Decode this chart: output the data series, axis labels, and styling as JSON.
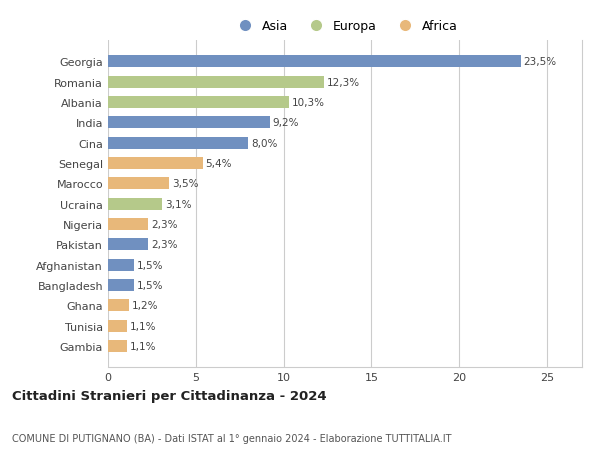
{
  "countries": [
    "Georgia",
    "Romania",
    "Albania",
    "India",
    "Cina",
    "Senegal",
    "Marocco",
    "Ucraina",
    "Nigeria",
    "Pakistan",
    "Afghanistan",
    "Bangladesh",
    "Ghana",
    "Tunisia",
    "Gambia"
  ],
  "values": [
    23.5,
    12.3,
    10.3,
    9.2,
    8.0,
    5.4,
    3.5,
    3.1,
    2.3,
    2.3,
    1.5,
    1.5,
    1.2,
    1.1,
    1.1
  ],
  "labels": [
    "23,5%",
    "12,3%",
    "10,3%",
    "9,2%",
    "8,0%",
    "5,4%",
    "3,5%",
    "3,1%",
    "2,3%",
    "2,3%",
    "1,5%",
    "1,5%",
    "1,2%",
    "1,1%",
    "1,1%"
  ],
  "continent": [
    "Asia",
    "Europa",
    "Europa",
    "Asia",
    "Asia",
    "Africa",
    "Africa",
    "Europa",
    "Africa",
    "Asia",
    "Asia",
    "Asia",
    "Africa",
    "Africa",
    "Africa"
  ],
  "colors": {
    "Asia": "#7090c0",
    "Europa": "#b5c98a",
    "Africa": "#e8b87a"
  },
  "title": "Cittadini Stranieri per Cittadinanza - 2024",
  "subtitle": "COMUNE DI PUTIGNANO (BA) - Dati ISTAT al 1° gennaio 2024 - Elaborazione TUTTITALIA.IT",
  "xlim": [
    0,
    27
  ],
  "xticks": [
    0,
    5,
    10,
    15,
    20,
    25
  ],
  "background_color": "#ffffff",
  "grid_color": "#cccccc",
  "bar_height": 0.6,
  "label_fontsize": 7.5,
  "tick_fontsize": 8,
  "legend_fontsize": 9
}
